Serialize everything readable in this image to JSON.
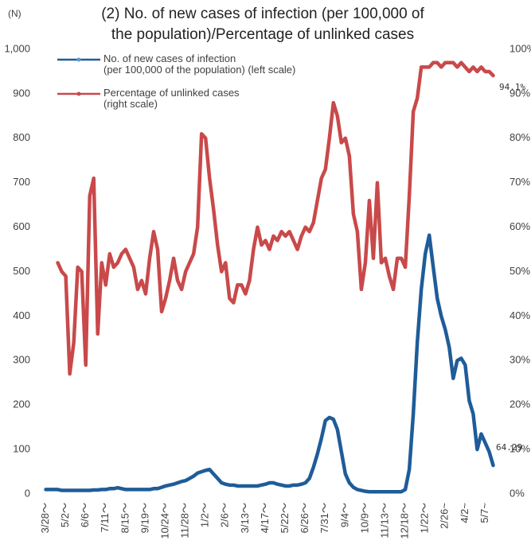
{
  "chart_data": {
    "type": "line",
    "title": "(2) No. of new cases of infection (per 100,000 of\nthe population)/Percentage of unlinked cases",
    "y_axis_label": "(N)",
    "categories": [
      "3/28～",
      null,
      null,
      null,
      null,
      "5/2～",
      null,
      null,
      null,
      null,
      "6/6～",
      null,
      null,
      null,
      null,
      "7/11～",
      null,
      null,
      null,
      null,
      "8/15～",
      null,
      null,
      null,
      null,
      "9/19～",
      null,
      null,
      null,
      null,
      "10/24～",
      null,
      null,
      null,
      null,
      "11/28～",
      null,
      null,
      null,
      null,
      "1/2～",
      null,
      null,
      null,
      null,
      "2/6～",
      null,
      null,
      null,
      null,
      "3/13～",
      null,
      null,
      null,
      null,
      "4/17～",
      null,
      null,
      null,
      null,
      "5/22～",
      null,
      null,
      null,
      null,
      "6/26～",
      null,
      null,
      null,
      null,
      "7/31～",
      null,
      null,
      null,
      null,
      "9/4～",
      null,
      null,
      null,
      null,
      "10/9～",
      null,
      null,
      null,
      null,
      "11/13～",
      null,
      null,
      null,
      null,
      "12/18～",
      null,
      null,
      null,
      null,
      "1/22～",
      null,
      null,
      null,
      null,
      "2/26~",
      null,
      null,
      null,
      null,
      "4/2~",
      null,
      null,
      null,
      null,
      "5/7~",
      null,
      null
    ],
    "series": [
      {
        "name": "No. of new cases of infection\n(per 100,000 of the population) (left scale)",
        "color": "#1f5c99",
        "axis": "y",
        "values": [
          10,
          10,
          10,
          10,
          8,
          8,
          8,
          8,
          8,
          8,
          8,
          8,
          9,
          9,
          10,
          10,
          12,
          12,
          14,
          12,
          10,
          10,
          10,
          10,
          10,
          10,
          10,
          12,
          12,
          15,
          18,
          20,
          22,
          25,
          28,
          30,
          35,
          40,
          47,
          50,
          53,
          55,
          45,
          35,
          25,
          22,
          20,
          20,
          18,
          18,
          18,
          18,
          18,
          18,
          20,
          22,
          25,
          25,
          22,
          20,
          18,
          18,
          20,
          20,
          22,
          25,
          35,
          60,
          90,
          125,
          165,
          172,
          168,
          145,
          95,
          45,
          25,
          15,
          10,
          8,
          6,
          5,
          5,
          5,
          5,
          5,
          5,
          5,
          5,
          5,
          10,
          55,
          180,
          340,
          460,
          540,
          582,
          510,
          440,
          400,
          370,
          330,
          260,
          300,
          305,
          290,
          210,
          180,
          100,
          135,
          115,
          95,
          64.29
        ],
        "value_labels": [
          null,
          null,
          null,
          null,
          null,
          null,
          null,
          null,
          null,
          null,
          null,
          null,
          null,
          null,
          null,
          null,
          null,
          null,
          null,
          null,
          null,
          null,
          null,
          null,
          null,
          null,
          null,
          null,
          null,
          null,
          null,
          null,
          null,
          null,
          null,
          null,
          null,
          null,
          null,
          null,
          null,
          null,
          null,
          null,
          null,
          null,
          null,
          null,
          null,
          null,
          null,
          null,
          null,
          null,
          null,
          null,
          null,
          null,
          null,
          null,
          null,
          null,
          null,
          null,
          null,
          null,
          null,
          null,
          null,
          null,
          null,
          null,
          null,
          null,
          null,
          null,
          null,
          null,
          null,
          null,
          null,
          null,
          null,
          null,
          null,
          null,
          null,
          null,
          null,
          null,
          null,
          null,
          null,
          null,
          null,
          null,
          null,
          null,
          null,
          null,
          null,
          null,
          null,
          null,
          null,
          null,
          null,
          null,
          null,
          null,
          null,
          null,
          "64.29"
        ]
      },
      {
        "name": "Percentage of unlinked cases\n(right scale)",
        "color": "#c9494a",
        "axis": "y2",
        "values": [
          null,
          null,
          null,
          52,
          50,
          49,
          27,
          34,
          51,
          50,
          29,
          67,
          71,
          36,
          52,
          47,
          54,
          51,
          52,
          54,
          55,
          53,
          51,
          46,
          48,
          45,
          53,
          59,
          55,
          41,
          44,
          48,
          53,
          48,
          46,
          50,
          52,
          54,
          60,
          81,
          80,
          71,
          64,
          56,
          50,
          52,
          44,
          43,
          47,
          47,
          45,
          48,
          55,
          60,
          56,
          57,
          55,
          58,
          57,
          59,
          58,
          59,
          57,
          55,
          58,
          60,
          59,
          61,
          66,
          71,
          73,
          80,
          88,
          85,
          79,
          80,
          76,
          63,
          59,
          46,
          52,
          66,
          53,
          70,
          52,
          53,
          49,
          46,
          53,
          53,
          51,
          67,
          86,
          89,
          96,
          96,
          96,
          97,
          97,
          96,
          97,
          97,
          97,
          96,
          97,
          96,
          95,
          96,
          95,
          96,
          95,
          95,
          94.1
        ],
        "value_labels": [
          null,
          null,
          null,
          null,
          null,
          null,
          null,
          null,
          null,
          null,
          null,
          null,
          null,
          null,
          null,
          null,
          null,
          null,
          null,
          null,
          null,
          null,
          null,
          null,
          null,
          null,
          null,
          null,
          null,
          null,
          null,
          null,
          null,
          null,
          null,
          null,
          null,
          null,
          null,
          null,
          null,
          null,
          null,
          null,
          null,
          null,
          null,
          null,
          null,
          null,
          null,
          null,
          null,
          null,
          null,
          null,
          null,
          null,
          null,
          null,
          null,
          null,
          null,
          null,
          null,
          null,
          null,
          null,
          null,
          null,
          null,
          null,
          null,
          null,
          null,
          null,
          null,
          null,
          null,
          null,
          null,
          null,
          null,
          null,
          null,
          null,
          null,
          null,
          null,
          null,
          null,
          null,
          null,
          null,
          null,
          null,
          null,
          null,
          null,
          null,
          null,
          null,
          null,
          null,
          null,
          null,
          null,
          null,
          null,
          null,
          null,
          null,
          "94.1%"
        ]
      }
    ],
    "ylim": [
      0,
      1000
    ],
    "yticks": [
      0,
      100,
      200,
      300,
      400,
      500,
      600,
      700,
      800,
      900,
      {
        "value": 1000,
        "label": "1,000"
      }
    ],
    "y2lim": [
      0,
      100
    ],
    "y2ticks": [
      {
        "value": 0,
        "label": "0%"
      },
      {
        "value": 10,
        "label": "10%"
      },
      {
        "value": 20,
        "label": "20%"
      },
      {
        "value": 30,
        "label": "30%"
      },
      {
        "value": 40,
        "label": "40%"
      },
      {
        "value": 50,
        "label": "50%"
      },
      {
        "value": 60,
        "label": "60%"
      },
      {
        "value": 70,
        "label": "70%"
      },
      {
        "value": 80,
        "label": "80%"
      },
      {
        "value": 90,
        "label": "90%"
      },
      {
        "value": 100,
        "label": "100%"
      }
    ],
    "grid": false,
    "legend": "top-left"
  }
}
